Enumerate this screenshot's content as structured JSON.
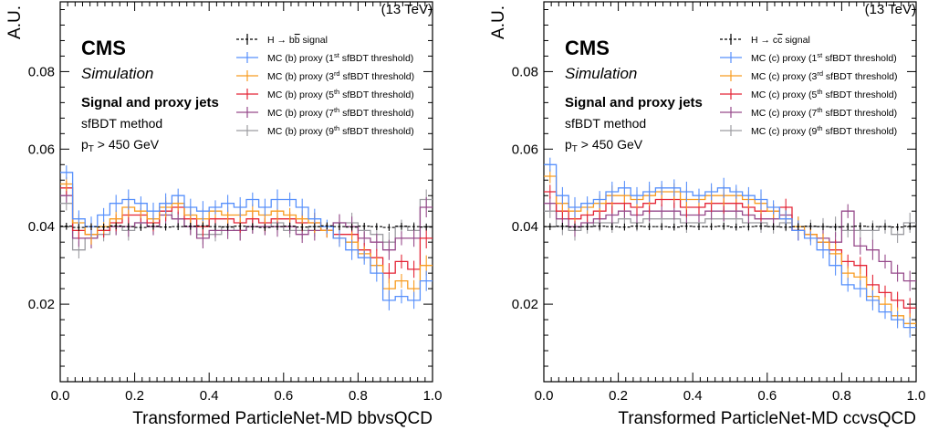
{
  "chart_data": [
    {
      "type": "line",
      "energy": "(13 TeV)",
      "ylabel": "A.U.",
      "xlabel": "Transformed ParticleNet-MD bbvsQCD",
      "xlim": [
        0,
        1
      ],
      "ylim": [
        0,
        0.098
      ],
      "xticks": [
        "0.0",
        "0.2",
        "0.4",
        "0.6",
        "0.8",
        "1.0"
      ],
      "yticks": [
        "0.02",
        "0.04",
        "0.06",
        "0.08"
      ],
      "cms": "CMS",
      "simulation": "Simulation",
      "info": [
        "Signal and proxy jets",
        "sfBDT method"
      ],
      "pt_cut": {
        "p": "p",
        "sub": "T",
        "rest": " > 450 GeV"
      },
      "legend": [
        {
          "pre": "H → b",
          "mid": "b",
          "post": " signal",
          "sup": "",
          "end": ""
        },
        {
          "pre": "MC (b) proxy (1",
          "sup": "st",
          "end": " sfBDT threshold)"
        },
        {
          "pre": "MC (b) proxy (3",
          "sup": "rd",
          "end": " sfBDT threshold)"
        },
        {
          "pre": "MC (b) proxy (5",
          "sup": "th",
          "end": " sfBDT threshold)"
        },
        {
          "pre": "MC (b) proxy (7",
          "sup": "th",
          "end": " sfBDT threshold)"
        },
        {
          "pre": "MC (b) proxy (9",
          "sup": "th",
          "end": " sfBDT threshold)"
        }
      ],
      "series": [
        {
          "name": "H → bb̄ signal",
          "color": "#000000",
          "dashed": true,
          "values": [
            0.0401,
            0.0398,
            0.04,
            0.0399,
            0.0402,
            0.04,
            0.0398,
            0.0401,
            0.0399,
            0.04,
            0.0401,
            0.0402,
            0.04,
            0.0399,
            0.0401,
            0.04,
            0.0398,
            0.04,
            0.0401,
            0.0399,
            0.04,
            0.0402,
            0.04,
            0.0399,
            0.0401,
            0.04,
            0.0398,
            0.0401,
            0.04,
            0.0399
          ]
        },
        {
          "name": "MC (b) proxy (1st sfBDT threshold)",
          "color": "#5790fc",
          "dashed": false,
          "values": [
            0.054,
            0.042,
            0.04,
            0.043,
            0.046,
            0.047,
            0.046,
            0.044,
            0.046,
            0.048,
            0.045,
            0.044,
            0.045,
            0.046,
            0.045,
            0.047,
            0.045,
            0.047,
            0.047,
            0.045,
            0.042,
            0.04,
            0.037,
            0.034,
            0.032,
            0.028,
            0.021,
            0.022,
            0.021,
            0.026
          ]
        },
        {
          "name": "MC (b) proxy (3rd sfBDT threshold)",
          "color": "#f89c20",
          "dashed": false,
          "values": [
            0.051,
            0.041,
            0.038,
            0.04,
            0.042,
            0.045,
            0.044,
            0.042,
            0.045,
            0.046,
            0.043,
            0.042,
            0.044,
            0.043,
            0.043,
            0.044,
            0.043,
            0.044,
            0.043,
            0.042,
            0.041,
            0.039,
            0.037,
            0.036,
            0.033,
            0.03,
            0.024,
            0.026,
            0.024,
            0.03
          ]
        },
        {
          "name": "MC (b) proxy (5th sfBDT threshold)",
          "color": "#e42536",
          "dashed": false,
          "values": [
            0.05,
            0.039,
            0.038,
            0.039,
            0.041,
            0.043,
            0.043,
            0.041,
            0.044,
            0.045,
            0.042,
            0.04,
            0.042,
            0.042,
            0.041,
            0.042,
            0.041,
            0.042,
            0.042,
            0.041,
            0.041,
            0.039,
            0.038,
            0.038,
            0.034,
            0.032,
            0.028,
            0.031,
            0.029,
            0.037
          ]
        },
        {
          "name": "MC (b) proxy (7th sfBDT threshold)",
          "color": "#964a8b",
          "dashed": false,
          "values": [
            0.048,
            0.037,
            0.037,
            0.039,
            0.04,
            0.04,
            0.041,
            0.04,
            0.043,
            0.042,
            0.04,
            0.037,
            0.039,
            0.039,
            0.039,
            0.04,
            0.04,
            0.04,
            0.04,
            0.038,
            0.039,
            0.039,
            0.041,
            0.04,
            0.037,
            0.036,
            0.034,
            0.037,
            0.037,
            0.045
          ]
        },
        {
          "name": "MC (b) proxy (9th sfBDT threshold)",
          "color": "#9c9ca1",
          "dashed": false,
          "values": [
            0.046,
            0.034,
            0.037,
            0.038,
            0.04,
            0.039,
            0.041,
            0.04,
            0.044,
            0.042,
            0.04,
            0.038,
            0.038,
            0.04,
            0.039,
            0.04,
            0.04,
            0.041,
            0.039,
            0.039,
            0.04,
            0.039,
            0.041,
            0.041,
            0.039,
            0.038,
            0.036,
            0.04,
            0.039,
            0.047
          ]
        }
      ]
    },
    {
      "type": "line",
      "energy": "(13 TeV)",
      "ylabel": "A.U.",
      "xlabel": "Transformed ParticleNet-MD ccvsQCD",
      "xlim": [
        0,
        1
      ],
      "ylim": [
        0,
        0.098
      ],
      "xticks": [
        "0.0",
        "0.2",
        "0.4",
        "0.6",
        "0.8",
        "1.0"
      ],
      "yticks": [
        "0.02",
        "0.04",
        "0.06",
        "0.08"
      ],
      "cms": "CMS",
      "simulation": "Simulation",
      "info": [
        "Signal and proxy jets",
        "sfBDT method"
      ],
      "pt_cut": {
        "p": "p",
        "sub": "T",
        "rest": " > 450 GeV"
      },
      "legend": [
        {
          "pre": "H → c",
          "mid": "c",
          "post": " signal",
          "sup": "",
          "end": ""
        },
        {
          "pre": "MC (c) proxy (1",
          "sup": "st",
          "end": " sfBDT threshold)"
        },
        {
          "pre": "MC (c) proxy (3",
          "sup": "rd",
          "end": " sfBDT threshold)"
        },
        {
          "pre": "MC (c) proxy (5",
          "sup": "th",
          "end": " sfBDT threshold)"
        },
        {
          "pre": "MC (c) proxy (7",
          "sup": "th",
          "end": " sfBDT threshold)"
        },
        {
          "pre": "MC (c) proxy (9",
          "sup": "th",
          "end": " sfBDT threshold)"
        }
      ],
      "series": [
        {
          "name": "H → cc̄ signal",
          "color": "#000000",
          "dashed": true,
          "values": [
            0.04,
            0.0401,
            0.0399,
            0.04,
            0.0401,
            0.04,
            0.0399,
            0.0401,
            0.04,
            0.04,
            0.0399,
            0.0401,
            0.04,
            0.04,
            0.0401,
            0.0399,
            0.04,
            0.0401,
            0.04,
            0.0399,
            0.04,
            0.0401,
            0.04,
            0.0399,
            0.04,
            0.0401,
            0.04,
            0.04,
            0.0399,
            0.0401
          ]
        },
        {
          "name": "MC (c) proxy (1st sfBDT threshold)",
          "color": "#5790fc",
          "dashed": false,
          "values": [
            0.056,
            0.048,
            0.045,
            0.046,
            0.047,
            0.049,
            0.05,
            0.048,
            0.049,
            0.05,
            0.05,
            0.049,
            0.048,
            0.049,
            0.05,
            0.049,
            0.048,
            0.047,
            0.045,
            0.042,
            0.039,
            0.037,
            0.034,
            0.03,
            0.025,
            0.024,
            0.021,
            0.018,
            0.016,
            0.014
          ]
        },
        {
          "name": "MC (c) proxy (3rd sfBDT threshold)",
          "color": "#f89c20",
          "dashed": false,
          "values": [
            0.053,
            0.046,
            0.044,
            0.045,
            0.046,
            0.048,
            0.048,
            0.047,
            0.048,
            0.049,
            0.049,
            0.047,
            0.047,
            0.048,
            0.048,
            0.048,
            0.047,
            0.046,
            0.044,
            0.042,
            0.04,
            0.038,
            0.036,
            0.033,
            0.028,
            0.027,
            0.022,
            0.02,
            0.017,
            0.015
          ]
        },
        {
          "name": "MC (c) proxy (5th sfBDT threshold)",
          "color": "#e42536",
          "dashed": false,
          "values": [
            0.049,
            0.044,
            0.042,
            0.043,
            0.044,
            0.046,
            0.046,
            0.045,
            0.046,
            0.047,
            0.047,
            0.045,
            0.045,
            0.046,
            0.046,
            0.046,
            0.045,
            0.044,
            0.044,
            0.045,
            0.039,
            0.038,
            0.036,
            0.034,
            0.031,
            0.03,
            0.025,
            0.023,
            0.021,
            0.019
          ]
        },
        {
          "name": "MC (c) proxy (7th sfBDT threshold)",
          "color": "#964a8b",
          "dashed": false,
          "values": [
            0.046,
            0.042,
            0.04,
            0.041,
            0.042,
            0.043,
            0.044,
            0.043,
            0.044,
            0.044,
            0.044,
            0.043,
            0.043,
            0.044,
            0.044,
            0.044,
            0.043,
            0.042,
            0.042,
            0.043,
            0.039,
            0.038,
            0.037,
            0.036,
            0.044,
            0.035,
            0.034,
            0.031,
            0.028,
            0.026
          ]
        },
        {
          "name": "MC (c) proxy (9th sfBDT threshold)",
          "color": "#9c9ca1",
          "dashed": false,
          "values": [
            0.044,
            0.04,
            0.039,
            0.04,
            0.041,
            0.041,
            0.042,
            0.041,
            0.042,
            0.042,
            0.042,
            0.041,
            0.041,
            0.042,
            0.042,
            0.042,
            0.041,
            0.041,
            0.04,
            0.041,
            0.04,
            0.04,
            0.04,
            0.04,
            0.039,
            0.039,
            0.039,
            0.04,
            0.038,
            0.041
          ]
        }
      ]
    }
  ]
}
